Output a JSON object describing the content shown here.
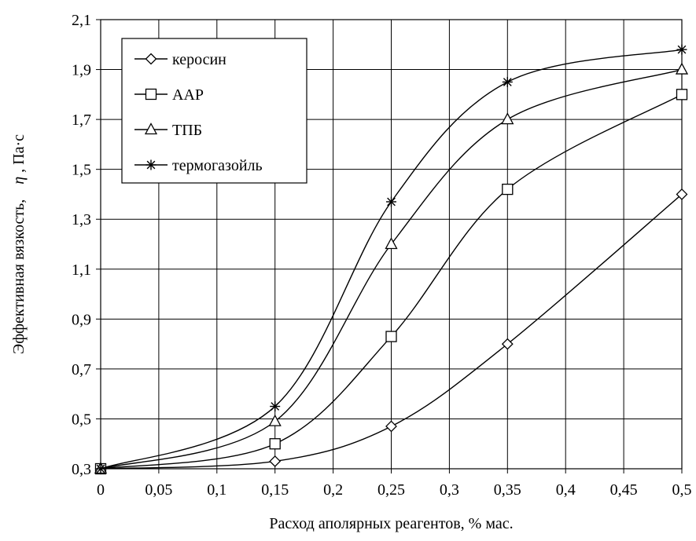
{
  "chart_data": {
    "type": "line",
    "title": "",
    "xlabel": "Расход аполярных реагентов, % мас.",
    "ylabel": "Эффективная вязкость, η, Па·с",
    "ylabel_parts": {
      "main": "Эффективная вязкость,",
      "symbol": "η",
      "unit": ", Па·с"
    },
    "x_categories": [
      "0",
      "0,05",
      "0,1",
      "0,15",
      "0,2",
      "0,25",
      "0,3",
      "0,35",
      "0,4",
      "0,45",
      "0,5"
    ],
    "x_values": [
      0,
      0.05,
      0.1,
      0.15,
      0.2,
      0.25,
      0.3,
      0.35,
      0.4,
      0.45,
      0.5
    ],
    "xlim": [
      0,
      0.5
    ],
    "y_ticks": [
      "0,3",
      "0,5",
      "0,7",
      "0,9",
      "1,1",
      "1,3",
      "1,5",
      "1,7",
      "1,9",
      "2,1"
    ],
    "y_tick_values": [
      0.3,
      0.5,
      0.7,
      0.9,
      1.1,
      1.3,
      1.5,
      1.7,
      1.9,
      2.1
    ],
    "ylim": [
      0.3,
      2.1
    ],
    "grid": true,
    "legend_position": "top-left",
    "smooth": true,
    "series": [
      {
        "name": "керосин",
        "marker": "diamond",
        "x": [
          0,
          0.15,
          0.25,
          0.35,
          0.5
        ],
        "y": [
          0.3,
          0.33,
          0.47,
          0.8,
          1.4
        ]
      },
      {
        "name": "ААР",
        "marker": "square",
        "x": [
          0,
          0.15,
          0.25,
          0.35,
          0.5
        ],
        "y": [
          0.3,
          0.4,
          0.83,
          1.42,
          1.8
        ]
      },
      {
        "name": "ТПБ",
        "marker": "triangle",
        "x": [
          0,
          0.15,
          0.25,
          0.35,
          0.5
        ],
        "y": [
          0.3,
          0.49,
          1.2,
          1.7,
          1.9
        ]
      },
      {
        "name": "термогазойль",
        "marker": "asterisk",
        "x": [
          0,
          0.15,
          0.25,
          0.35,
          0.5
        ],
        "y": [
          0.3,
          0.55,
          1.37,
          1.85,
          1.98
        ]
      }
    ],
    "colors": {
      "line": "#000000",
      "grid": "#000000",
      "background": "#ffffff"
    }
  }
}
